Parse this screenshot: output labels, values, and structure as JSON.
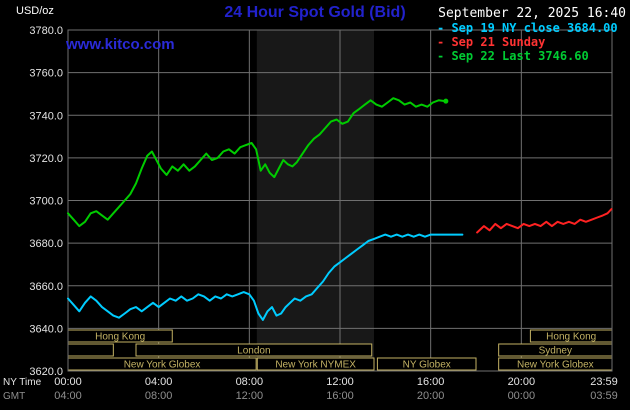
{
  "header": {
    "units": "USD/oz",
    "title": "24 Hour Spot Gold (Bid)",
    "datetime": "September 22, 2025 16:40",
    "watermark": "www.kitco.com"
  },
  "legend": {
    "items": [
      {
        "id": "sep19",
        "label": "Sep 19 NY close 3684.00",
        "color": "#00ccff"
      },
      {
        "id": "sep21",
        "label": "Sep 21 Sunday",
        "color": "#ff3333"
      },
      {
        "id": "sep22",
        "label": "Sep 22 Last 3746.60",
        "color": "#00cc33"
      }
    ]
  },
  "chart_data": {
    "type": "line",
    "title": "24 Hour Spot Gold (Bid)",
    "grid_color": "#707070",
    "axis_text_color": "#e3e3e3",
    "gmt_text_color": "#8f8f8f",
    "band": {
      "start_h": 8.33,
      "end_h": 13.5,
      "color": "#181818"
    },
    "x_axis": {
      "label_ny": "NY Time",
      "label_gmt": "GMT",
      "range_hours": [
        0,
        24
      ],
      "ticks_hours": [
        0,
        4,
        8,
        12,
        16,
        20,
        24
      ],
      "tick_labels_ny": [
        "00:00",
        "04:00",
        "08:00",
        "12:00",
        "16:00",
        "20:00",
        "23:59"
      ],
      "tick_labels_gmt": [
        "04:00",
        "08:00",
        "12:00",
        "16:00",
        "20:00",
        "00:00",
        "03:59"
      ]
    },
    "y_axis": {
      "units": "USD/oz",
      "range": [
        3620,
        3780
      ],
      "tick_step": 20,
      "tick_labels": [
        "3780.0",
        "3760.0",
        "3740.0",
        "3720.0",
        "3700.0",
        "3680.0",
        "3660.0",
        "3640.0",
        "3620.0"
      ]
    },
    "series": [
      {
        "id": "sep19",
        "name": "Sep 19 NY close",
        "color": "#00ccff",
        "close": 3684.0,
        "points": [
          [
            0,
            3654
          ],
          [
            0.25,
            3651
          ],
          [
            0.5,
            3648
          ],
          [
            0.75,
            3652
          ],
          [
            1,
            3655
          ],
          [
            1.25,
            3653
          ],
          [
            1.5,
            3650
          ],
          [
            1.75,
            3648
          ],
          [
            2,
            3646
          ],
          [
            2.25,
            3645
          ],
          [
            2.5,
            3647
          ],
          [
            2.75,
            3649
          ],
          [
            3,
            3650
          ],
          [
            3.25,
            3648
          ],
          [
            3.5,
            3650
          ],
          [
            3.75,
            3652
          ],
          [
            4,
            3650
          ],
          [
            4.25,
            3652
          ],
          [
            4.5,
            3654
          ],
          [
            4.75,
            3653
          ],
          [
            5,
            3655
          ],
          [
            5.25,
            3653
          ],
          [
            5.5,
            3654
          ],
          [
            5.75,
            3656
          ],
          [
            6,
            3655
          ],
          [
            6.25,
            3653
          ],
          [
            6.5,
            3655
          ],
          [
            6.75,
            3654
          ],
          [
            7,
            3656
          ],
          [
            7.25,
            3655
          ],
          [
            7.5,
            3656
          ],
          [
            7.75,
            3657
          ],
          [
            8,
            3656
          ],
          [
            8.2,
            3653
          ],
          [
            8.4,
            3647
          ],
          [
            8.6,
            3644
          ],
          [
            8.8,
            3648
          ],
          [
            9,
            3650
          ],
          [
            9.2,
            3646
          ],
          [
            9.4,
            3647
          ],
          [
            9.6,
            3650
          ],
          [
            9.8,
            3652
          ],
          [
            10,
            3654
          ],
          [
            10.25,
            3653
          ],
          [
            10.5,
            3655
          ],
          [
            10.75,
            3656
          ],
          [
            11,
            3659
          ],
          [
            11.25,
            3662
          ],
          [
            11.5,
            3666
          ],
          [
            11.75,
            3669
          ],
          [
            12,
            3671
          ],
          [
            12.25,
            3673
          ],
          [
            12.5,
            3675
          ],
          [
            12.75,
            3677
          ],
          [
            13,
            3679
          ],
          [
            13.25,
            3681
          ],
          [
            13.5,
            3682
          ],
          [
            13.75,
            3683
          ],
          [
            14,
            3684
          ],
          [
            14.25,
            3683
          ],
          [
            14.5,
            3684
          ],
          [
            14.75,
            3683
          ],
          [
            15,
            3684
          ],
          [
            15.25,
            3683
          ],
          [
            15.5,
            3684
          ],
          [
            15.75,
            3683
          ],
          [
            16,
            3684
          ],
          [
            16.25,
            3684
          ],
          [
            16.5,
            3684
          ],
          [
            16.75,
            3684
          ],
          [
            17,
            3684
          ],
          [
            17.4,
            3684
          ]
        ]
      },
      {
        "id": "sep21",
        "name": "Sep 21 Sunday",
        "color": "#ff2222",
        "points": [
          [
            18.05,
            3685
          ],
          [
            18.35,
            3688
          ],
          [
            18.6,
            3686
          ],
          [
            18.85,
            3689
          ],
          [
            19.1,
            3687
          ],
          [
            19.35,
            3689
          ],
          [
            19.6,
            3688
          ],
          [
            19.85,
            3687
          ],
          [
            20.1,
            3689
          ],
          [
            20.35,
            3688
          ],
          [
            20.6,
            3689
          ],
          [
            20.85,
            3688
          ],
          [
            21.1,
            3690
          ],
          [
            21.35,
            3688
          ],
          [
            21.6,
            3690
          ],
          [
            21.85,
            3689
          ],
          [
            22.1,
            3690
          ],
          [
            22.35,
            3689
          ],
          [
            22.6,
            3691
          ],
          [
            22.85,
            3690
          ],
          [
            23.1,
            3691
          ],
          [
            23.35,
            3692
          ],
          [
            23.6,
            3693
          ],
          [
            23.8,
            3694
          ],
          [
            23.98,
            3696
          ]
        ]
      },
      {
        "id": "sep22",
        "name": "Sep 22",
        "color": "#00cc00",
        "last": 3746.6,
        "points": [
          [
            0,
            3694
          ],
          [
            0.25,
            3691
          ],
          [
            0.5,
            3688
          ],
          [
            0.75,
            3690
          ],
          [
            1,
            3694
          ],
          [
            1.25,
            3695
          ],
          [
            1.5,
            3693
          ],
          [
            1.75,
            3691
          ],
          [
            2,
            3694
          ],
          [
            2.25,
            3697
          ],
          [
            2.5,
            3700
          ],
          [
            2.75,
            3703
          ],
          [
            3,
            3708
          ],
          [
            3.25,
            3715
          ],
          [
            3.5,
            3721
          ],
          [
            3.7,
            3723
          ],
          [
            3.9,
            3719
          ],
          [
            4.1,
            3715
          ],
          [
            4.35,
            3712
          ],
          [
            4.6,
            3716
          ],
          [
            4.85,
            3714
          ],
          [
            5.1,
            3717
          ],
          [
            5.35,
            3714
          ],
          [
            5.6,
            3716
          ],
          [
            5.85,
            3719
          ],
          [
            6.1,
            3722
          ],
          [
            6.35,
            3719
          ],
          [
            6.6,
            3720
          ],
          [
            6.85,
            3723
          ],
          [
            7.1,
            3724
          ],
          [
            7.35,
            3722
          ],
          [
            7.6,
            3725
          ],
          [
            7.85,
            3726
          ],
          [
            8.1,
            3727
          ],
          [
            8.3,
            3724
          ],
          [
            8.5,
            3714
          ],
          [
            8.7,
            3717
          ],
          [
            8.9,
            3713
          ],
          [
            9.1,
            3711
          ],
          [
            9.3,
            3715
          ],
          [
            9.5,
            3719
          ],
          [
            9.7,
            3717
          ],
          [
            9.9,
            3716
          ],
          [
            10.1,
            3718
          ],
          [
            10.35,
            3722
          ],
          [
            10.6,
            3726
          ],
          [
            10.85,
            3729
          ],
          [
            11.1,
            3731
          ],
          [
            11.35,
            3734
          ],
          [
            11.6,
            3737
          ],
          [
            11.85,
            3738
          ],
          [
            12.1,
            3736
          ],
          [
            12.35,
            3737
          ],
          [
            12.6,
            3741
          ],
          [
            12.85,
            3743
          ],
          [
            13.1,
            3745
          ],
          [
            13.35,
            3747
          ],
          [
            13.6,
            3745
          ],
          [
            13.85,
            3744
          ],
          [
            14.1,
            3746
          ],
          [
            14.35,
            3748
          ],
          [
            14.6,
            3747
          ],
          [
            14.85,
            3745
          ],
          [
            15.1,
            3746
          ],
          [
            15.35,
            3744
          ],
          [
            15.6,
            3745
          ],
          [
            15.85,
            3744
          ],
          [
            16.1,
            3746
          ],
          [
            16.35,
            3747
          ],
          [
            16.67,
            3746.6
          ]
        ]
      }
    ],
    "sessions": {
      "color": "#c3b264",
      "rows": [
        [
          {
            "start_h": 0,
            "end_h": 4.6,
            "label": "Hong Kong"
          },
          {
            "start_h": 20.4,
            "end_h": 24,
            "label": "Hong Kong"
          }
        ],
        [
          {
            "start_h": 0,
            "end_h": 2.0,
            "label": ""
          },
          {
            "start_h": 3.0,
            "end_h": 13.4,
            "label": "London"
          },
          {
            "start_h": 19.0,
            "end_h": 24,
            "label": "Sydney"
          }
        ],
        [
          {
            "start_h": 0,
            "end_h": 8.3,
            "label": "New York Globex"
          },
          {
            "start_h": 8.35,
            "end_h": 13.5,
            "label": "New York NYMEX"
          },
          {
            "start_h": 13.65,
            "end_h": 18.0,
            "label": "NY Globex"
          },
          {
            "start_h": 19.0,
            "end_h": 24,
            "label": "New York Globex"
          }
        ]
      ]
    }
  }
}
